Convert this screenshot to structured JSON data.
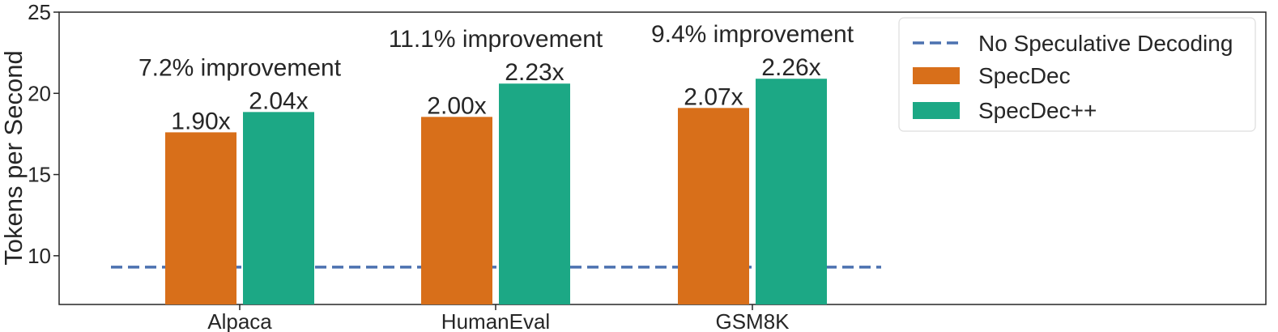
{
  "chart_data": {
    "type": "bar",
    "categories": [
      "Alpaca",
      "HumanEval",
      "GSM8K"
    ],
    "series": [
      {
        "name": "SpecDec",
        "values": [
          17.6,
          18.55,
          19.1
        ],
        "labels": [
          "1.90x",
          "2.00x",
          "2.07x"
        ],
        "color": "#d86f1a"
      },
      {
        "name": "SpecDec++",
        "values": [
          18.85,
          20.6,
          20.9
        ],
        "labels": [
          "2.04x",
          "2.23x",
          "2.26x"
        ],
        "color": "#1ca885"
      }
    ],
    "baseline": {
      "name": "No Speculative Decoding",
      "value": 9.3,
      "color": "#4c72b0"
    },
    "annotations": [
      "7.2% improvement",
      "11.1% improvement",
      "9.4% improvement"
    ],
    "ylabel": "Tokens per Second",
    "xlabel": "",
    "ylim": [
      7,
      25
    ],
    "yticks": [
      10,
      15,
      20,
      25
    ],
    "grid": false,
    "legend_position": "top-right"
  }
}
